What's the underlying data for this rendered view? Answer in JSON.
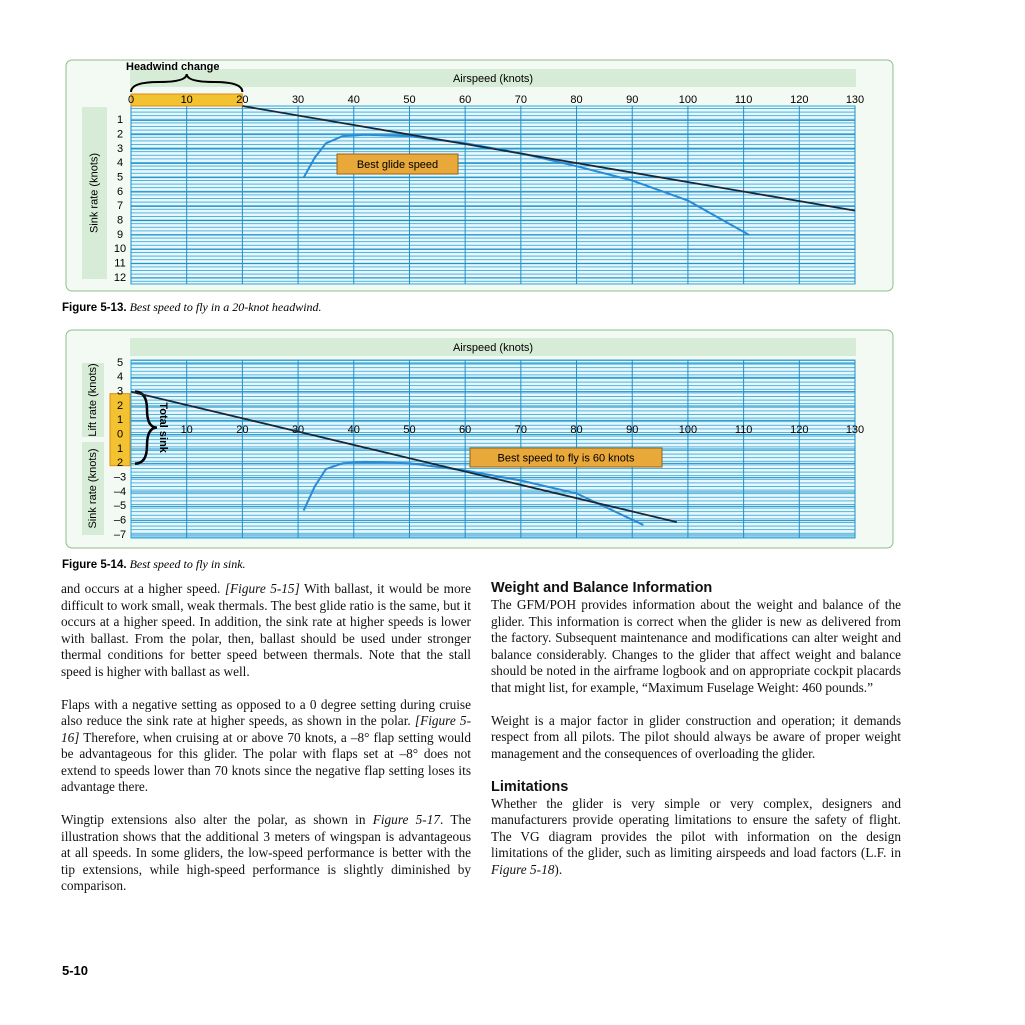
{
  "figures": [
    {
      "x_title": "Airspeed (knots)",
      "y_titles": [
        "Sink rate (knots)"
      ],
      "y_reversed": true,
      "xlim": [
        0,
        130
      ],
      "xticks": [
        0,
        10,
        20,
        30,
        40,
        50,
        60,
        70,
        80,
        90,
        100,
        110,
        120,
        130
      ],
      "ylim": [
        0,
        12
      ],
      "yticks": [
        1,
        2,
        3,
        4,
        5,
        6,
        7,
        8,
        9,
        10,
        11,
        12
      ],
      "annotation": "Headwind change",
      "callout": "Best glide speed",
      "line": {
        "x": [
          20,
          130
        ],
        "y": [
          0,
          7.3
        ]
      },
      "polar": {
        "x": [
          31,
          33,
          35,
          38,
          42,
          50,
          60,
          70,
          80,
          90,
          100,
          111
        ],
        "y": [
          5,
          3.6,
          2.6,
          2.1,
          2.0,
          2.1,
          2.6,
          3.3,
          4.2,
          5.2,
          6.6,
          9.0
        ]
      },
      "caption_label": "Figure 5-13.",
      "caption_text": "Best speed to fly in a 20-knot headwind."
    },
    {
      "x_title": "Airspeed (knots)",
      "y_titles": [
        "Lift rate (knots)",
        "Sink rate (knots)"
      ],
      "y_reversed": false,
      "xlim": [
        0,
        130
      ],
      "xticks": [
        10,
        20,
        30,
        40,
        50,
        60,
        70,
        80,
        90,
        100,
        110,
        120,
        130
      ],
      "ylim": [
        -7,
        5
      ],
      "yticks": [
        5,
        4,
        3,
        2,
        1,
        0,
        {
          "value": -1,
          "label": "1"
        },
        {
          "value": -2,
          "label": "2"
        },
        {
          "value": -3,
          "label": "–3"
        },
        {
          "value": -4,
          "label": "–4"
        },
        {
          "value": -5,
          "label": "–5"
        },
        {
          "value": -6,
          "label": "–6"
        },
        {
          "value": -7,
          "label": "–7"
        }
      ],
      "annotation": "Total sink",
      "callout": "Best speed to fly is 60 knots",
      "line": {
        "x": [
          0,
          98
        ],
        "y": [
          3,
          -6.1
        ]
      },
      "polar": {
        "x": [
          31,
          33,
          35,
          38,
          42,
          50,
          60,
          70,
          80,
          92
        ],
        "y": [
          -5.3,
          -3.6,
          -2.4,
          -2.0,
          -1.9,
          -2.0,
          -2.5,
          -3.2,
          -4.1,
          -6.3
        ]
      },
      "caption_label": "Figure 5-14.",
      "caption_text": "Best speed to fly in sink."
    }
  ],
  "left_column": [
    {
      "runs": [
        {
          "text": "and occurs at a higher speed. "
        },
        {
          "text": "[Figure 5-15]",
          "italic": true
        },
        {
          "text": " With ballast, it would be more difficult to work small, weak thermals. The best glide ratio is the same, but it occurs at a higher speed. In addition, the sink rate at higher speeds is lower with ballast. From the polar, then, ballast should be used under stronger thermal conditions for better speed between thermals. Note that the stall speed is higher with ballast as well."
        }
      ]
    },
    {
      "runs": [
        {
          "text": "Flaps with a negative setting as opposed to a 0 degree setting during cruise also reduce the sink rate at higher speeds, as shown in the polar. "
        },
        {
          "text": "[Figure 5-16]",
          "italic": true
        },
        {
          "text": " Therefore, when cruising at or above 70 knots, a –8° flap setting would be advantageous for this glider. The polar with flaps set at –8° does not extend to speeds lower than 70 knots since the negative flap setting loses its advantage there."
        }
      ]
    },
    {
      "runs": [
        {
          "text": "Wingtip extensions also alter the polar, as shown in "
        },
        {
          "text": "Figure 5-17",
          "italic": true
        },
        {
          "text": ". The illustration shows that the additional 3 meters of wingspan is advantageous at all speeds. In some gliders, the low-speed performance is better with the tip extensions, while high-speed performance is slightly diminished by comparison."
        }
      ]
    }
  ],
  "right_column": [
    {
      "heading": "Weight and Balance Information"
    },
    {
      "runs": [
        {
          "text": "The GFM/POH provides information about the weight and balance of the glider. This information is correct when the glider is new as delivered from the factory. Subsequent maintenance and modifications can alter weight and balance considerably. Changes to the glider that affect weight and balance should be noted in the airframe logbook and on appropriate cockpit placards that might list, for example, “Maximum Fuselage Weight: 460 pounds.”"
        }
      ]
    },
    {
      "runs": [
        {
          "text": "Weight is a major factor in glider construction and operation; it demands respect from all pilots. The pilot should always be aware of proper weight management and the consequences of overloading the glider."
        }
      ]
    },
    {
      "heading": "Limitations"
    },
    {
      "runs": [
        {
          "text": "Whether the glider is very simple or very complex, designers and manufacturers provide operating limitations to ensure the safety of flight. The VG diagram provides the pilot with information on the design limitations of the glider, such as limiting airspeeds and load factors (L.F. in "
        },
        {
          "text": "Figure 5-18",
          "italic": true
        },
        {
          "text": ")."
        }
      ]
    }
  ],
  "page_number": "5-10"
}
